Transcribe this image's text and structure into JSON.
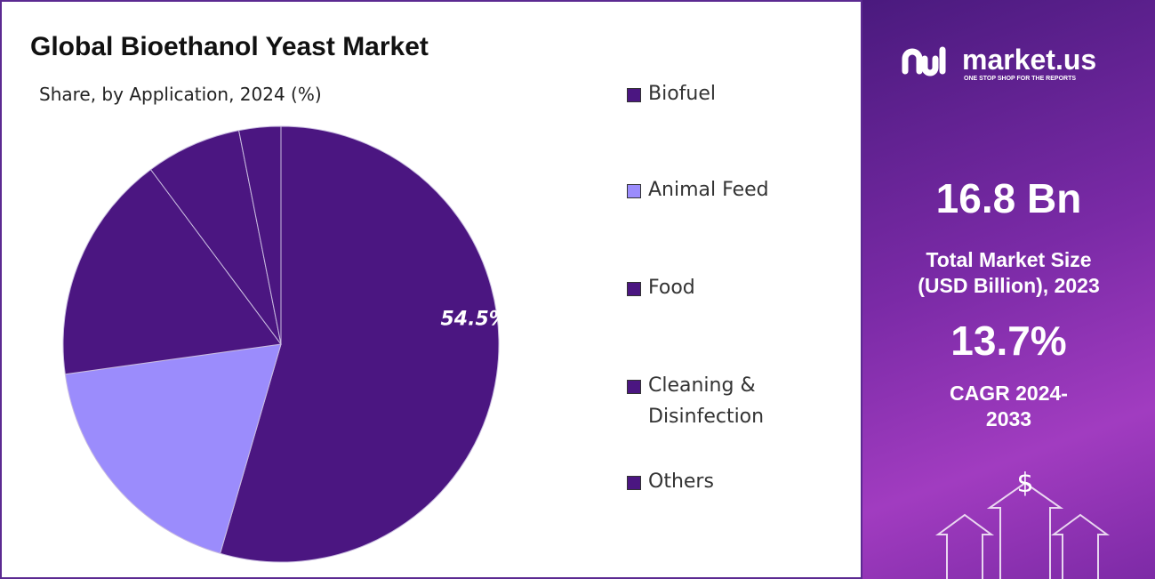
{
  "chart_data": {
    "type": "pie",
    "title": "Global Bioethanol Yeast Market",
    "subtitle": "Share, by Application, 2024 (%)",
    "categories": [
      "Biofuel",
      "Animal Feed",
      "Food",
      "Cleaning & Disinfection",
      "Others"
    ],
    "values": [
      54.5,
      18.3,
      17.0,
      7.1,
      3.1
    ],
    "value_labels": [
      "54.5%",
      null,
      null,
      null,
      null
    ],
    "colors": [
      "#4b1681",
      "#9b8cfc",
      "#4b1681",
      "#4b1681",
      "#4b1681"
    ]
  },
  "sidebar": {
    "brand": "market.us",
    "tagline": "ONE STOP SHOP FOR THE REPORTS",
    "market_size": "16.8 Bn",
    "market_size_label": "Total Market Size (USD Billion), 2023",
    "cagr": "13.7%",
    "cagr_label": "CAGR 2024-2033"
  }
}
